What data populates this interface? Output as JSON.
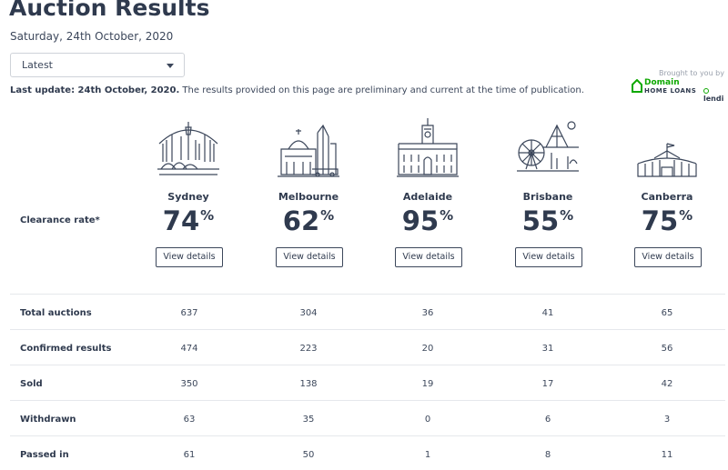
{
  "header": {
    "title": "Auction Results",
    "date": "Saturday, 24th October, 2020",
    "select_value": "Latest"
  },
  "update": {
    "bold": "Last update: 24th October, 2020.",
    "text": " The results provided on this page are preliminary and current at the time of publication."
  },
  "sponsor": {
    "brought_by": "Brought to you by",
    "domain_name": "Domain",
    "domain_sub": "HOME LOANS",
    "lendi": "lendi"
  },
  "clearance_label": "Clearance rate*",
  "view_details_label": "View details",
  "cities": [
    {
      "name": "Sydney",
      "rate": "74",
      "unit": "%"
    },
    {
      "name": "Melbourne",
      "rate": "62",
      "unit": "%"
    },
    {
      "name": "Adelaide",
      "rate": "95",
      "unit": "%"
    },
    {
      "name": "Brisbane",
      "rate": "55",
      "unit": "%"
    },
    {
      "name": "Canberra",
      "rate": "75",
      "unit": "%"
    }
  ],
  "table": [
    {
      "label": "Total auctions",
      "values": [
        "637",
        "304",
        "36",
        "41",
        "65"
      ]
    },
    {
      "label": "Confirmed results",
      "values": [
        "474",
        "223",
        "20",
        "31",
        "56"
      ]
    },
    {
      "label": "Sold",
      "values": [
        "350",
        "138",
        "19",
        "17",
        "42"
      ]
    },
    {
      "label": "Withdrawn",
      "values": [
        "63",
        "35",
        "0",
        "6",
        "3"
      ]
    },
    {
      "label": "Passed in",
      "values": [
        "61",
        "50",
        "1",
        "8",
        "11"
      ]
    }
  ],
  "colors": {
    "text": "#2f3a4e",
    "brand_green": "#0ea800",
    "border": "#e6e8ec"
  }
}
